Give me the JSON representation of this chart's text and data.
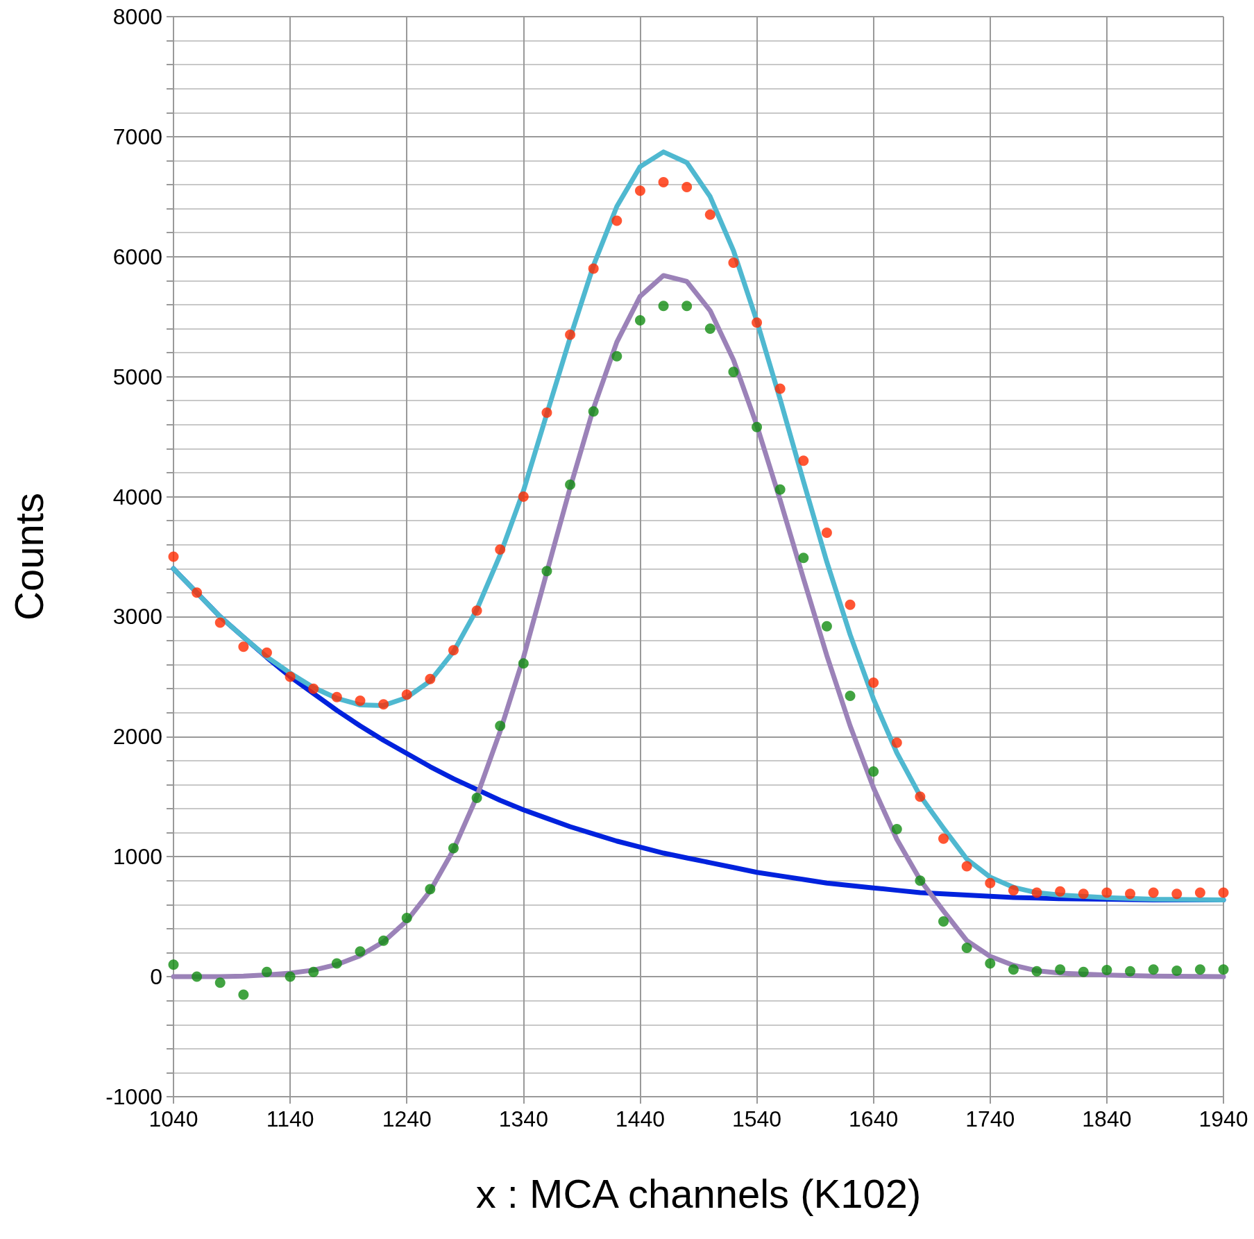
{
  "chart_data": {
    "type": "scatter",
    "xlabel": "x : MCA channels (K102)",
    "ylabel": "Counts",
    "x": [
      1040,
      1060,
      1080,
      1100,
      1120,
      1140,
      1160,
      1180,
      1200,
      1220,
      1240,
      1260,
      1280,
      1300,
      1320,
      1340,
      1360,
      1380,
      1400,
      1420,
      1440,
      1460,
      1480,
      1500,
      1520,
      1540,
      1560,
      1580,
      1600,
      1620,
      1640,
      1660,
      1680,
      1700,
      1720,
      1740,
      1760,
      1780,
      1800,
      1820,
      1840,
      1860,
      1880,
      1900,
      1920,
      1940
    ],
    "series": [
      {
        "color": "#ff2a00",
        "marker": "circle",
        "values": [
          3500,
          3200,
          2950,
          2750,
          2700,
          2500,
          2400,
          2330,
          2300,
          2270,
          2350,
          2480,
          2720,
          3050,
          3560,
          4000,
          4700,
          5350,
          5900,
          6300,
          6550,
          6620,
          6580,
          6350,
          5950,
          5450,
          4900,
          4300,
          3700,
          3100,
          2450,
          1950,
          1500,
          1150,
          920,
          780,
          720,
          700,
          710,
          690,
          700,
          690,
          700,
          690,
          700,
          700
        ]
      },
      {
        "color": "#118c11",
        "marker": "circle",
        "values": [
          100,
          0,
          -50,
          -150,
          40,
          0,
          40,
          110,
          210,
          300,
          490,
          730,
          1070,
          1490,
          2090,
          2610,
          3380,
          4100,
          4710,
          5170,
          5470,
          5590,
          5590,
          5400,
          5040,
          4580,
          4060,
          3490,
          2920,
          2340,
          1710,
          1230,
          800,
          460,
          240,
          110,
          60,
          45,
          60,
          40,
          55,
          45,
          60,
          50,
          60,
          60
        ]
      },
      {
        "type": "line",
        "color": "#0022dd",
        "marker": "none",
        "line_style": "solid",
        "x": [
          1040,
          1060,
          1080,
          1100,
          1120,
          1140,
          1160,
          1180,
          1200,
          1220,
          1240,
          1260,
          1280,
          1300,
          1320,
          1340,
          1360,
          1380,
          1400,
          1420,
          1440,
          1460,
          1480,
          1500,
          1520,
          1540,
          1560,
          1580,
          1600,
          1620,
          1640,
          1660,
          1680,
          1700,
          1720,
          1740,
          1760,
          1780,
          1800,
          1840,
          1880,
          1940
        ],
        "values": [
          3400,
          3200,
          3000,
          2830,
          2660,
          2500,
          2360,
          2220,
          2090,
          1970,
          1860,
          1750,
          1650,
          1560,
          1470,
          1390,
          1320,
          1250,
          1190,
          1130,
          1080,
          1030,
          990,
          950,
          910,
          870,
          840,
          810,
          780,
          760,
          740,
          720,
          700,
          690,
          680,
          670,
          660,
          655,
          650,
          645,
          640,
          640
        ]
      },
      {
        "type": "line",
        "color": "#4fb8d0",
        "marker": "none",
        "line_style": "solid",
        "x": [
          1040,
          1060,
          1080,
          1100,
          1120,
          1140,
          1160,
          1180,
          1200,
          1220,
          1240,
          1260,
          1280,
          1300,
          1320,
          1340,
          1360,
          1380,
          1400,
          1420,
          1440,
          1460,
          1480,
          1500,
          1520,
          1540,
          1560,
          1580,
          1600,
          1620,
          1640,
          1660,
          1680,
          1700,
          1720,
          1740,
          1760,
          1780,
          1800,
          1840,
          1880,
          1940
        ],
        "values": [
          3400,
          3200,
          3000,
          2830,
          2665,
          2530,
          2410,
          2320,
          2265,
          2260,
          2326,
          2464,
          2708,
          3060,
          3515,
          4050,
          4690,
          5325,
          5926,
          6418,
          6750,
          6873,
          6784,
          6500,
          6050,
          5465,
          4812,
          4128,
          3457,
          2850,
          2314,
          1866,
          1507,
          1238,
          980,
          830,
          745,
          700,
          680,
          659,
          645,
          640
        ]
      },
      {
        "type": "line",
        "color": "#9b82b8",
        "marker": "none",
        "line_style": "solid",
        "x": [
          1040,
          1060,
          1080,
          1100,
          1120,
          1140,
          1160,
          1180,
          1200,
          1220,
          1240,
          1260,
          1280,
          1300,
          1320,
          1340,
          1360,
          1380,
          1400,
          1420,
          1440,
          1460,
          1480,
          1500,
          1520,
          1540,
          1560,
          1580,
          1600,
          1620,
          1640,
          1660,
          1680,
          1700,
          1720,
          1740,
          1760,
          1780,
          1800,
          1840,
          1880,
          1940
        ],
        "values": [
          0,
          0,
          0,
          5,
          15,
          30,
          55,
          101,
          175,
          291,
          466,
          714,
          1058,
          1500,
          2045,
          2660,
          3370,
          4075,
          4736,
          5288,
          5670,
          5843,
          5794,
          5550,
          5140,
          4595,
          3972,
          3318,
          2677,
          2090,
          1574,
          1146,
          807,
          548,
          300,
          170,
          95,
          50,
          30,
          14,
          5,
          0
        ]
      }
    ],
    "xlim": [
      1040,
      1940
    ],
    "xticks": [
      1040,
      1140,
      1240,
      1340,
      1440,
      1540,
      1640,
      1740,
      1840,
      1940
    ],
    "ylim": [
      -1000,
      8000
    ],
    "yticks": [
      -1000,
      {
        "value": -800,
        "label": null
      },
      {
        "value": -600,
        "label": null
      },
      {
        "value": -400,
        "label": null
      },
      {
        "value": -200,
        "label": null
      },
      0,
      {
        "value": 200,
        "label": null
      },
      {
        "value": 400,
        "label": null
      },
      {
        "value": 600,
        "label": null
      },
      {
        "value": 800,
        "label": null
      },
      1000,
      {
        "value": 1200,
        "label": null
      },
      {
        "value": 1400,
        "label": null
      },
      {
        "value": 1600,
        "label": null
      },
      {
        "value": 1800,
        "label": null
      },
      2000,
      {
        "value": 2200,
        "label": null
      },
      {
        "value": 2400,
        "label": null
      },
      {
        "value": 2600,
        "label": null
      },
      {
        "value": 2800,
        "label": null
      },
      3000,
      {
        "value": 3200,
        "label": null
      },
      {
        "value": 3400,
        "label": null
      },
      {
        "value": 3600,
        "label": null
      },
      {
        "value": 3800,
        "label": null
      },
      4000,
      {
        "value": 4200,
        "label": null
      },
      {
        "value": 4400,
        "label": null
      },
      {
        "value": 4600,
        "label": null
      },
      {
        "value": 4800,
        "label": null
      },
      5000,
      {
        "value": 5200,
        "label": null
      },
      {
        "value": 5400,
        "label": null
      },
      {
        "value": 5600,
        "label": null
      },
      {
        "value": 5800,
        "label": null
      },
      6000,
      {
        "value": 6200,
        "label": null
      },
      {
        "value": 6400,
        "label": null
      },
      {
        "value": 6600,
        "label": null
      },
      {
        "value": 6800,
        "label": null
      },
      7000,
      {
        "value": 7200,
        "label": null
      },
      {
        "value": 7400,
        "label": null
      },
      {
        "value": 7600,
        "label": null
      },
      {
        "value": 7800,
        "label": null
      },
      8000
    ],
    "grid": true
  }
}
